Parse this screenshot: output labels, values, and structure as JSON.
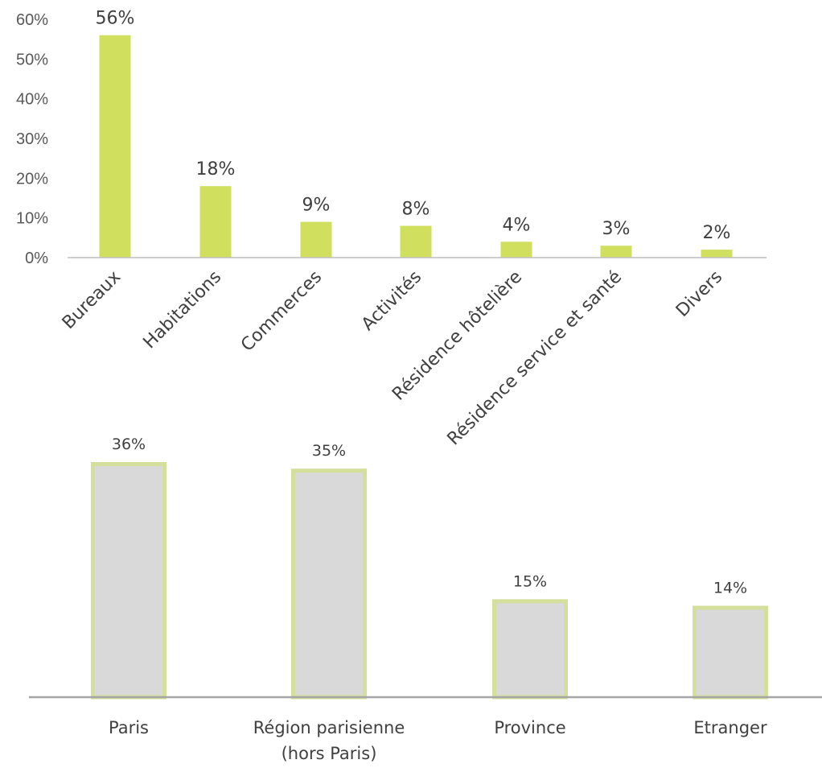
{
  "chart_data": [
    {
      "type": "bar",
      "categories": [
        "Bureaux",
        "Habitations",
        "Commerces",
        "Activités",
        "Résidence hôtelière",
        "Résidence service et santé",
        "Divers"
      ],
      "values": [
        56,
        18,
        9,
        8,
        4,
        3,
        2
      ],
      "data_labels": [
        "56%",
        "18%",
        "9%",
        "8%",
        "4%",
        "3%",
        "2%"
      ],
      "yticks": [
        "0%",
        "10%",
        "20%",
        "30%",
        "40%",
        "50%",
        "60%"
      ],
      "ylim": [
        0,
        60
      ],
      "colors": {
        "bar": "#d0e05e",
        "axis": "#bfbfbf"
      },
      "grid": false
    },
    {
      "type": "bar",
      "categories": [
        [
          "Paris"
        ],
        [
          "Région parisienne",
          "(hors Paris)"
        ],
        [
          "Province"
        ],
        [
          "Etranger"
        ]
      ],
      "values": [
        36,
        35,
        15,
        14
      ],
      "data_labels": [
        "36%",
        "35%",
        "15%",
        "14%"
      ],
      "ylim": [
        0,
        40
      ],
      "colors": {
        "bar": "#d9d9d9",
        "border": "#d3df9a",
        "axis": "#a6a6a6"
      },
      "grid": false
    }
  ]
}
